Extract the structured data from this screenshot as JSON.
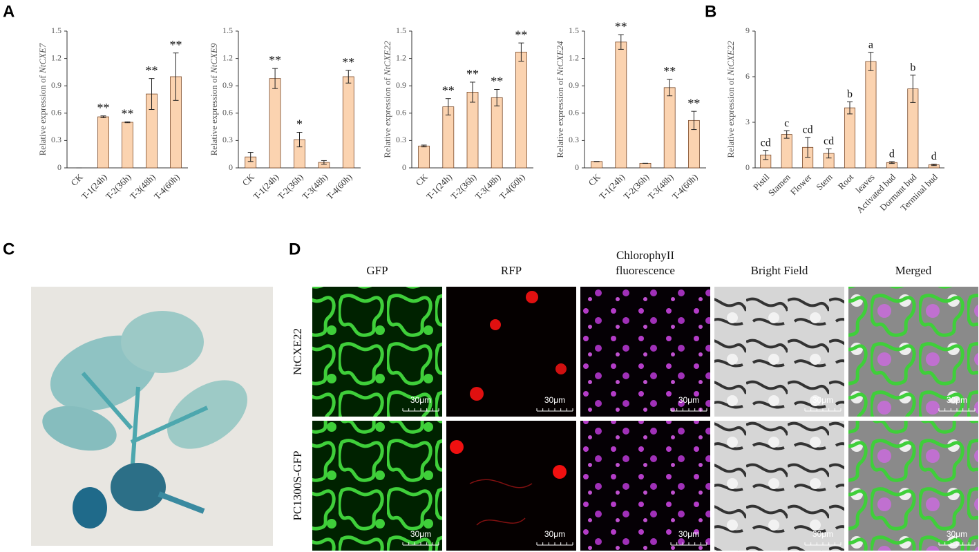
{
  "panel_labels": [
    "A",
    "B",
    "C",
    "D"
  ],
  "chart_data": [
    {
      "type": "bar",
      "ylabel": "Relative expression of",
      "ylabel_gene": "NtCXE7",
      "categories": [
        "CK",
        "T-1(24h)",
        "T-2(36h)",
        "T-3(48h)",
        "T-4(60h)"
      ],
      "values": [
        0,
        0.56,
        0.5,
        0.81,
        1.0
      ],
      "errors": [
        0,
        0.01,
        0.005,
        0.17,
        0.26
      ],
      "annotations": [
        null,
        "**",
        "**",
        "**",
        "**"
      ],
      "ylim": [
        0,
        1.5
      ],
      "yticks": [
        0,
        0.3,
        0.6,
        0.9,
        1.2,
        1.5
      ],
      "color": "#fbd3b0"
    },
    {
      "type": "bar",
      "ylabel": "Relative expression of",
      "ylabel_gene": "NtCXE9",
      "categories": [
        "CK",
        "T-1(24h)",
        "T-2(36h)",
        "T-3(48h)",
        "T-4(60h)"
      ],
      "values": [
        0.12,
        0.98,
        0.31,
        0.06,
        1.0
      ],
      "errors": [
        0.05,
        0.11,
        0.08,
        0.02,
        0.07
      ],
      "annotations": [
        null,
        "**",
        "*",
        null,
        "**"
      ],
      "ylim": [
        0,
        1.5
      ],
      "yticks": [
        0,
        0.3,
        0.6,
        0.9,
        1.2,
        1.5
      ],
      "color": "#fbd3b0"
    },
    {
      "type": "bar",
      "ylabel": "Relative expression of",
      "ylabel_gene": "NtCXE22",
      "categories": [
        "CK",
        "T-1(24h)",
        "T-2(36h)",
        "T-3(48h)",
        "T-4(60h)"
      ],
      "values": [
        0.24,
        0.67,
        0.83,
        0.77,
        1.27
      ],
      "errors": [
        0.01,
        0.09,
        0.11,
        0.09,
        0.1
      ],
      "annotations": [
        null,
        "**",
        "**",
        "**",
        "**"
      ],
      "ylim": [
        0,
        1.5
      ],
      "yticks": [
        0,
        0.3,
        0.6,
        0.9,
        1.2,
        1.5
      ],
      "color": "#fbd3b0"
    },
    {
      "type": "bar",
      "ylabel": "Relative expression of",
      "ylabel_gene": "NtCXE24",
      "categories": [
        "CK",
        "T-1(24h)",
        "T-2(36h)",
        "T-3(48h)",
        "T-4(60h)"
      ],
      "values": [
        0.07,
        1.38,
        0.05,
        0.88,
        0.52
      ],
      "errors": [
        0,
        0.08,
        0,
        0.09,
        0.1
      ],
      "annotations": [
        null,
        "**",
        null,
        "**",
        "**"
      ],
      "ylim": [
        0,
        1.5
      ],
      "yticks": [
        0,
        0.3,
        0.6,
        0.9,
        1.2,
        1.5
      ],
      "color": "#fbd3b0"
    },
    {
      "type": "bar",
      "ylabel": "Relative expression of",
      "ylabel_gene": "NtCXE22",
      "categories": [
        "Pistil",
        "Stamen",
        "Flower",
        "Stem",
        "Root",
        "leaves",
        "Activated bud",
        "Dormant bud",
        "Terminal bud"
      ],
      "values": [
        0.85,
        2.2,
        1.35,
        0.95,
        3.95,
        7.0,
        0.35,
        5.2,
        0.2
      ],
      "errors": [
        0.3,
        0.25,
        0.65,
        0.3,
        0.4,
        0.6,
        0.06,
        0.9,
        0.05
      ],
      "annotations": [
        "cd",
        "c",
        "cd",
        "cd",
        "b",
        "a",
        "d",
        "b",
        "d"
      ],
      "ylim": [
        0,
        9
      ],
      "yticks": [
        0,
        3,
        6,
        9
      ],
      "color": "#fbd3b0"
    }
  ],
  "microscopy": {
    "columns": [
      [
        "GFP"
      ],
      [
        "RFP"
      ],
      [
        "ChlorophyII",
        "fluorescence"
      ],
      [
        "Bright Field"
      ],
      [
        "Merged"
      ]
    ],
    "rows": [
      "NtCXE22",
      "PC1300S-GFP"
    ],
    "scale_bar": "30μm"
  }
}
